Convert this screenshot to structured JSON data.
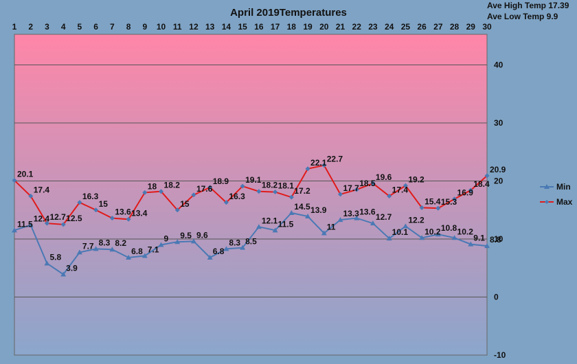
{
  "colors": {
    "background": "#7fa3c4",
    "plot_top": "#ff86a8",
    "plot_bottom": "#8ba6cc",
    "grid": "#555555",
    "min_series": "#4a79b4",
    "max_series": "#e01b1b",
    "text": "#111111"
  },
  "stats": {
    "ave_high": "Ave High Temp 17.39",
    "ave_low": "Ave Low Temp 9.9"
  },
  "chart_data": {
    "type": "line",
    "title": "April 2019Temperatures",
    "x": [
      1,
      2,
      3,
      4,
      5,
      6,
      7,
      8,
      9,
      10,
      11,
      12,
      13,
      14,
      15,
      16,
      17,
      18,
      19,
      20,
      21,
      22,
      23,
      24,
      25,
      26,
      27,
      28,
      29,
      30
    ],
    "x_axis_position": "top",
    "y_axis_position": "right",
    "ylim": [
      -10,
      45
    ],
    "yticks": [
      -10,
      0,
      10,
      20,
      30,
      40
    ],
    "grid": true,
    "legend": "right",
    "series": [
      {
        "name": "Min",
        "marker": "triangle",
        "color": "#4a79b4",
        "values": [
          11.5,
          12.4,
          5.8,
          3.9,
          7.7,
          8.3,
          8.2,
          6.8,
          7.1,
          9,
          9.5,
          9.6,
          6.8,
          8.3,
          8.5,
          12.1,
          11.5,
          14.5,
          13.9,
          11,
          13.3,
          13.6,
          12.7,
          10.1,
          12.2,
          10.2,
          10.8,
          10.2,
          9.1,
          8.8
        ]
      },
      {
        "name": "Max",
        "marker": "diamond",
        "color": "#e01b1b",
        "values": [
          20.1,
          17.4,
          12.7,
          12.5,
          16.3,
          15,
          13.6,
          13.4,
          18,
          18.2,
          15,
          17.6,
          18.9,
          16.3,
          19.1,
          18.2,
          18.1,
          17.2,
          22.1,
          22.7,
          17.7,
          18.5,
          19.6,
          17.4,
          19.2,
          15.4,
          15.3,
          16.9,
          18.4,
          20.9
        ]
      }
    ]
  }
}
